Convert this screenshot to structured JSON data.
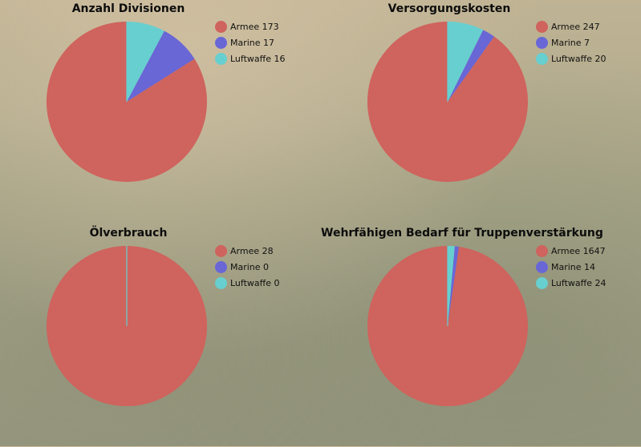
{
  "colors": {
    "armee": "#cf635d",
    "marine": "#6966d6",
    "luftwaffe": "#67cfd0"
  },
  "chart_data": [
    {
      "type": "pie",
      "title": "Anzahl Divisionen",
      "series": [
        {
          "name": "Armee",
          "value": 173,
          "label": "Armee 173"
        },
        {
          "name": "Marine",
          "value": 17,
          "label": "Marine 17"
        },
        {
          "name": "Luftwaffe",
          "value": 16,
          "label": "Luftwaffe 16"
        }
      ]
    },
    {
      "type": "pie",
      "title": "Versorgungskosten",
      "series": [
        {
          "name": "Armee",
          "value": 247,
          "label": "Armee 247"
        },
        {
          "name": "Marine",
          "value": 7,
          "label": "Marine 7"
        },
        {
          "name": "Luftwaffe",
          "value": 20,
          "label": "Luftwaffe 20"
        }
      ]
    },
    {
      "type": "pie",
      "title": "Ölverbrauch",
      "series": [
        {
          "name": "Armee",
          "value": 28,
          "label": "Armee 28"
        },
        {
          "name": "Marine",
          "value": 0,
          "label": "Marine 0"
        },
        {
          "name": "Luftwaffe",
          "value": 0,
          "label": "Luftwaffe 0"
        }
      ]
    },
    {
      "type": "pie",
      "title": "Wehrfähigen Bedarf für Truppenverstärkung",
      "series": [
        {
          "name": "Armee",
          "value": 1647,
          "label": "Armee 1647"
        },
        {
          "name": "Marine",
          "value": 14,
          "label": "Marine 14"
        },
        {
          "name": "Luftwaffe",
          "value": 24,
          "label": "Luftwaffe 24"
        }
      ]
    }
  ]
}
